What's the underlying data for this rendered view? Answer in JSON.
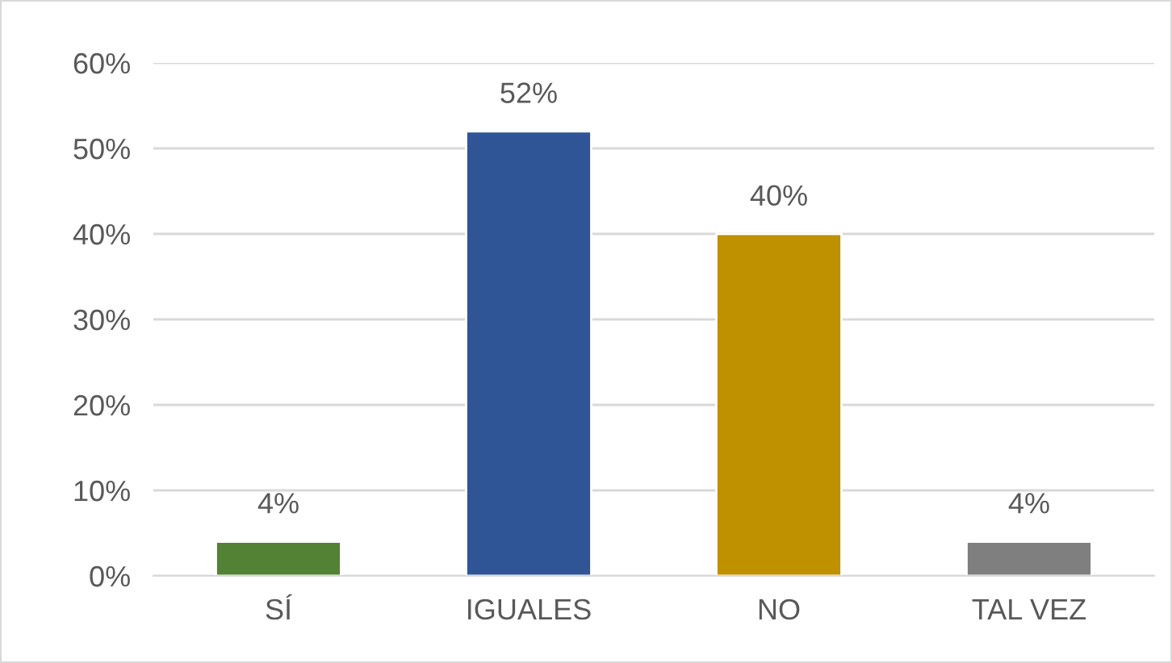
{
  "chart_data": {
    "type": "bar",
    "categories": [
      "SÍ",
      "IGUALES",
      "NO",
      "TAL VEZ"
    ],
    "values": [
      4,
      52,
      40,
      4
    ],
    "colors": [
      "#548235",
      "#2f5597",
      "#bf9000",
      "#7f7f7f"
    ],
    "value_labels": [
      "4%",
      "52%",
      "40%",
      "4%"
    ],
    "ylim": [
      0,
      60
    ],
    "yticks": [
      {
        "value": 0,
        "label": "0%"
      },
      {
        "value": 10,
        "label": "10%"
      },
      {
        "value": 20,
        "label": "20%"
      },
      {
        "value": 30,
        "label": "30%"
      },
      {
        "value": 40,
        "label": "40%"
      },
      {
        "value": 50,
        "label": "50%"
      },
      {
        "value": 60,
        "label": "60%"
      }
    ],
    "grid": "y",
    "legend": false
  }
}
